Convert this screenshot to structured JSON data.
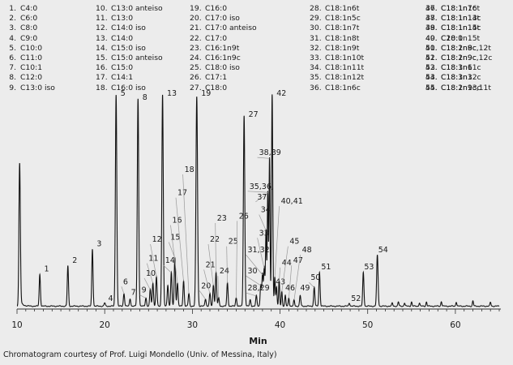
{
  "legend": [
    {
      "num": "1.",
      "name": "C4:0"
    },
    {
      "num": "2.",
      "name": "C6:0"
    },
    {
      "num": "3.",
      "name": "C8:0"
    },
    {
      "num": "4.",
      "name": "C9:0"
    },
    {
      "num": "5.",
      "name": "C10:0"
    },
    {
      "num": "6.",
      "name": "C11:0"
    },
    {
      "num": "7.",
      "name": "C10:1"
    },
    {
      "num": "8.",
      "name": "C12:0"
    },
    {
      "num": "9.",
      "name": "C13:0 iso"
    },
    {
      "num": "10.",
      "name": "C13:0 anteiso"
    },
    {
      "num": "11.",
      "name": "C13:0"
    },
    {
      "num": "12.",
      "name": "C14:0 iso"
    },
    {
      "num": "13.",
      "name": "C14:0"
    },
    {
      "num": "14.",
      "name": "C15:0 iso"
    },
    {
      "num": "15.",
      "name": "C15:0 anteiso"
    },
    {
      "num": "16.",
      "name": "C15:0"
    },
    {
      "num": "17.",
      "name": "C14:1"
    },
    {
      "num": "18.",
      "name": "C16:0 iso"
    },
    {
      "num": "19.",
      "name": "C16:0"
    },
    {
      "num": "20.",
      "name": "C17:0 iso"
    },
    {
      "num": "21.",
      "name": "C17:0 anteiso"
    },
    {
      "num": "22.",
      "name": "C17:0"
    },
    {
      "num": "23.",
      "name": "C16:1n9t"
    },
    {
      "num": "24.",
      "name": "C16:1n9c"
    },
    {
      "num": "25.",
      "name": "C18:0 iso"
    },
    {
      "num": "26.",
      "name": "C17:1"
    },
    {
      "num": "27.",
      "name": "C18:0"
    },
    {
      "num": "28.",
      "name": "C18:1n6t"
    },
    {
      "num": "29.",
      "name": "C18:1n5c"
    },
    {
      "num": "30.",
      "name": "C18:1n7t"
    },
    {
      "num": "31.",
      "name": "C18:1n8t"
    },
    {
      "num": "32.",
      "name": "C18:1n9t"
    },
    {
      "num": "33.",
      "name": "C18:1n10t"
    },
    {
      "num": "34.",
      "name": "C18:1n11t"
    },
    {
      "num": "35.",
      "name": "C18:1n12t"
    },
    {
      "num": "36.",
      "name": "C18:1n6c"
    },
    {
      "num": "37.",
      "name": "C18:1n7c"
    },
    {
      "num": "38.",
      "name": "C18:1n13t"
    },
    {
      "num": "39.",
      "name": "C18:1n14t"
    },
    {
      "num": "40.",
      "name": "C18:1n15t"
    },
    {
      "num": "41.",
      "name": "C18:1n8c"
    },
    {
      "num": "42.",
      "name": "C18:1n9c"
    },
    {
      "num": "43.",
      "name": "C18:1n11c"
    },
    {
      "num": "44.",
      "name": "C18:1n12c"
    },
    {
      "num": "45.",
      "name": "C18:1n13c"
    },
    {
      "num": "46.",
      "name": "C18:1n16t"
    },
    {
      "num": "47.",
      "name": "C18:1n14c"
    },
    {
      "num": "48.",
      "name": "C18:1n15c"
    },
    {
      "num": "49.",
      "name": "C20:0"
    },
    {
      "num": "50.",
      "name": "C18:2n9c,12t"
    },
    {
      "num": "51.",
      "name": "C18:2n9c,12c"
    },
    {
      "num": "52.",
      "name": "C18:3n6"
    },
    {
      "num": "53.",
      "name": "C18:3n3"
    },
    {
      "num": "54.",
      "name": "C18:2n9c,11t"
    }
  ],
  "credit": "Chromatogram courtesy of Prof. Luigi Mondello (Univ. of Messina, Italy)",
  "chart_data": {
    "type": "line",
    "title": "",
    "xlabel": "Min",
    "ylabel": "",
    "xlim": [
      10,
      65
    ],
    "ylim": [
      0,
      100
    ],
    "xticks": [
      10,
      20,
      30,
      40,
      50,
      60
    ],
    "grid": false,
    "color": "#111111",
    "peaks": [
      {
        "t": 10.3,
        "h": 65,
        "w": 0.08
      },
      {
        "t": 12.6,
        "h": 15,
        "w": 0.07
      },
      {
        "t": 15.8,
        "h": 19,
        "w": 0.07
      },
      {
        "t": 18.6,
        "h": 27,
        "w": 0.07
      },
      {
        "t": 20.0,
        "h": 1.5,
        "w": 0.07
      },
      {
        "t": 21.3,
        "h": 100,
        "w": 0.08
      },
      {
        "t": 22.2,
        "h": 6,
        "w": 0.07
      },
      {
        "t": 22.9,
        "h": 3.5,
        "w": 0.07
      },
      {
        "t": 23.8,
        "h": 98,
        "w": 0.08
      },
      {
        "t": 24.7,
        "h": 4,
        "w": 0.07
      },
      {
        "t": 25.2,
        "h": 8,
        "w": 0.07
      },
      {
        "t": 25.5,
        "h": 11,
        "w": 0.07
      },
      {
        "t": 25.9,
        "h": 14,
        "w": 0.07
      },
      {
        "t": 26.6,
        "h": 100,
        "w": 0.08
      },
      {
        "t": 27.2,
        "h": 10,
        "w": 0.07
      },
      {
        "t": 27.6,
        "h": 16,
        "w": 0.07
      },
      {
        "t": 28.0,
        "h": 23,
        "w": 0.07
      },
      {
        "t": 28.3,
        "h": 11,
        "w": 0.07
      },
      {
        "t": 29.0,
        "h": 12,
        "w": 0.07
      },
      {
        "t": 29.6,
        "h": 6,
        "w": 0.07
      },
      {
        "t": 30.5,
        "h": 99,
        "w": 0.09
      },
      {
        "t": 31.5,
        "h": 3.5,
        "w": 0.07
      },
      {
        "t": 32.0,
        "h": 6,
        "w": 0.07
      },
      {
        "t": 32.4,
        "h": 10,
        "w": 0.07
      },
      {
        "t": 32.7,
        "h": 16,
        "w": 0.07
      },
      {
        "t": 33.0,
        "h": 4,
        "w": 0.07
      },
      {
        "t": 34.0,
        "h": 11,
        "w": 0.07
      },
      {
        "t": 35.0,
        "h": 4,
        "w": 0.07
      },
      {
        "t": 35.9,
        "h": 90,
        "w": 0.08
      },
      {
        "t": 36.6,
        "h": 3,
        "w": 0.07
      },
      {
        "t": 37.3,
        "h": 5,
        "w": 0.07
      },
      {
        "t": 37.8,
        "h": 10,
        "w": 0.07
      },
      {
        "t": 38.0,
        "h": 15,
        "w": 0.07
      },
      {
        "t": 38.2,
        "h": 18,
        "w": 0.07
      },
      {
        "t": 38.4,
        "h": 36,
        "w": 0.06
      },
      {
        "t": 38.6,
        "h": 54,
        "w": 0.06
      },
      {
        "t": 38.8,
        "h": 70,
        "w": 0.06
      },
      {
        "t": 39.1,
        "h": 100,
        "w": 0.07
      },
      {
        "t": 39.4,
        "h": 14,
        "w": 0.06
      },
      {
        "t": 39.6,
        "h": 9,
        "w": 0.06
      },
      {
        "t": 39.9,
        "h": 12,
        "w": 0.06
      },
      {
        "t": 40.2,
        "h": 7,
        "w": 0.06
      },
      {
        "t": 40.6,
        "h": 5,
        "w": 0.06
      },
      {
        "t": 41.0,
        "h": 4,
        "w": 0.06
      },
      {
        "t": 41.6,
        "h": 3,
        "w": 0.06
      },
      {
        "t": 42.3,
        "h": 5,
        "w": 0.07
      },
      {
        "t": 43.9,
        "h": 9,
        "w": 0.07
      },
      {
        "t": 44.5,
        "h": 16,
        "w": 0.07
      },
      {
        "t": 47.9,
        "h": 1.5,
        "w": 0.07
      },
      {
        "t": 49.5,
        "h": 16,
        "w": 0.07
      },
      {
        "t": 51.1,
        "h": 24,
        "w": 0.08
      },
      {
        "t": 52.8,
        "h": 1.5,
        "w": 0.06
      },
      {
        "t": 53.5,
        "h": 2.0,
        "w": 0.06
      },
      {
        "t": 54.2,
        "h": 1.5,
        "w": 0.06
      },
      {
        "t": 55.0,
        "h": 2.0,
        "w": 0.06
      },
      {
        "t": 55.9,
        "h": 1.5,
        "w": 0.06
      },
      {
        "t": 56.7,
        "h": 2.0,
        "w": 0.06
      },
      {
        "t": 58.4,
        "h": 2.2,
        "w": 0.06
      },
      {
        "t": 60.1,
        "h": 2.0,
        "w": 0.06
      },
      {
        "t": 62.0,
        "h": 2.5,
        "w": 0.06
      },
      {
        "t": 64.0,
        "h": 1.8,
        "w": 0.06
      }
    ],
    "annotations": [
      {
        "label": "1",
        "t": 12.6,
        "h": 15,
        "lx": 13.1,
        "ly": 17
      },
      {
        "label": "2",
        "t": 15.8,
        "h": 19,
        "lx": 16.3,
        "ly": 21
      },
      {
        "label": "3",
        "t": 18.6,
        "h": 27,
        "lx": 19.1,
        "ly": 29
      },
      {
        "label": "4",
        "t": 20.0,
        "h": 1.5,
        "lx": 20.4,
        "ly": 3
      },
      {
        "label": "5",
        "t": 21.3,
        "h": 100,
        "lx": 21.8,
        "ly": 100
      },
      {
        "label": "6",
        "t": 22.2,
        "h": 6,
        "lx": 22.1,
        "ly": 11
      },
      {
        "label": "7",
        "t": 22.9,
        "h": 3.5,
        "lx": 23.0,
        "ly": 6
      },
      {
        "label": "8",
        "t": 23.8,
        "h": 98,
        "lx": 24.3,
        "ly": 98
      },
      {
        "label": "9",
        "t": 24.7,
        "h": 4,
        "lx": 24.2,
        "ly": 7
      },
      {
        "label": "10",
        "t": 25.2,
        "h": 8,
        "lx": 24.7,
        "ly": 15
      },
      {
        "label": "11",
        "t": 25.5,
        "h": 11,
        "lx": 25.0,
        "ly": 22
      },
      {
        "label": "12",
        "t": 25.9,
        "h": 14,
        "lx": 25.4,
        "ly": 31
      },
      {
        "label": "13",
        "t": 26.6,
        "h": 100,
        "lx": 27.1,
        "ly": 100
      },
      {
        "label": "14",
        "t": 27.6,
        "h": 16,
        "lx": 26.9,
        "ly": 21
      },
      {
        "label": "15",
        "t": 28.0,
        "h": 23,
        "lx": 27.5,
        "ly": 32
      },
      {
        "label": "16",
        "t": 28.3,
        "h": 11,
        "lx": 27.7,
        "ly": 40
      },
      {
        "label": "17",
        "t": 29.0,
        "h": 12,
        "lx": 28.3,
        "ly": 53
      },
      {
        "label": "18",
        "t": 29.6,
        "h": 6,
        "lx": 29.1,
        "ly": 64
      },
      {
        "label": "19",
        "t": 30.5,
        "h": 99,
        "lx": 31.0,
        "ly": 100
      },
      {
        "label": "20",
        "t": 31.5,
        "h": 3.5,
        "lx": 31.0,
        "ly": 9
      },
      {
        "label": "21",
        "t": 32.0,
        "h": 6,
        "lx": 31.5,
        "ly": 19
      },
      {
        "label": "22",
        "t": 32.4,
        "h": 10,
        "lx": 32.0,
        "ly": 31
      },
      {
        "label": "23",
        "t": 32.7,
        "h": 16,
        "lx": 32.8,
        "ly": 41
      },
      {
        "label": "24",
        "t": 33.0,
        "h": 4,
        "lx": 33.1,
        "ly": 16
      },
      {
        "label": "25",
        "t": 34.0,
        "h": 11,
        "lx": 34.1,
        "ly": 30
      },
      {
        "label": "26",
        "t": 35.0,
        "h": 4,
        "lx": 35.3,
        "ly": 42
      },
      {
        "label": "27",
        "t": 35.9,
        "h": 90,
        "lx": 36.4,
        "ly": 90
      },
      {
        "label": "28,29",
        "t": 37.3,
        "h": 5,
        "lx": 36.3,
        "ly": 8
      },
      {
        "label": "30",
        "t": 37.8,
        "h": 10,
        "lx": 36.3,
        "ly": 16
      },
      {
        "label": "31,32",
        "t": 38.0,
        "h": 15,
        "lx": 36.3,
        "ly": 26
      },
      {
        "label": "33",
        "t": 38.2,
        "h": 18,
        "lx": 37.6,
        "ly": 34
      },
      {
        "label": "34",
        "t": 38.4,
        "h": 36,
        "lx": 37.8,
        "ly": 45
      },
      {
        "label": "35,36,",
        "t": 38.6,
        "h": 54,
        "lx": 36.5,
        "ly": 56
      },
      {
        "label": "37",
        "t": 38.7,
        "h": 54,
        "lx": 37.4,
        "ly": 51
      },
      {
        "label": "38,39",
        "t": 38.8,
        "h": 70,
        "lx": 37.6,
        "ly": 72
      },
      {
        "label": "40,41",
        "t": 39.4,
        "h": 14,
        "lx": 40.1,
        "ly": 49
      },
      {
        "label": "42",
        "t": 39.1,
        "h": 100,
        "lx": 39.6,
        "ly": 100
      },
      {
        "label": "43",
        "t": 39.6,
        "h": 9,
        "lx": 39.5,
        "ly": 11
      },
      {
        "label": "44",
        "t": 39.9,
        "h": 12,
        "lx": 40.2,
        "ly": 20
      },
      {
        "label": "45",
        "t": 40.2,
        "h": 7,
        "lx": 41.1,
        "ly": 30
      },
      {
        "label": "46",
        "t": 40.6,
        "h": 5,
        "lx": 40.6,
        "ly": 8
      },
      {
        "label": "47",
        "t": 41.0,
        "h": 4,
        "lx": 41.5,
        "ly": 21
      },
      {
        "label": "48",
        "t": 41.6,
        "h": 3,
        "lx": 42.5,
        "ly": 26
      },
      {
        "label": "49",
        "t": 42.3,
        "h": 5,
        "lx": 42.3,
        "ly": 8
      },
      {
        "label": "50",
        "t": 43.9,
        "h": 9,
        "lx": 43.5,
        "ly": 13
      },
      {
        "label": "51",
        "t": 44.5,
        "h": 16,
        "lx": 44.7,
        "ly": 18
      },
      {
        "label": "52",
        "t": 47.9,
        "h": 1.5,
        "lx": 48.1,
        "ly": 3
      },
      {
        "label": "53",
        "t": 49.5,
        "h": 16,
        "lx": 49.6,
        "ly": 18
      },
      {
        "label": "54",
        "t": 51.1,
        "h": 24,
        "lx": 51.2,
        "ly": 26
      }
    ]
  }
}
